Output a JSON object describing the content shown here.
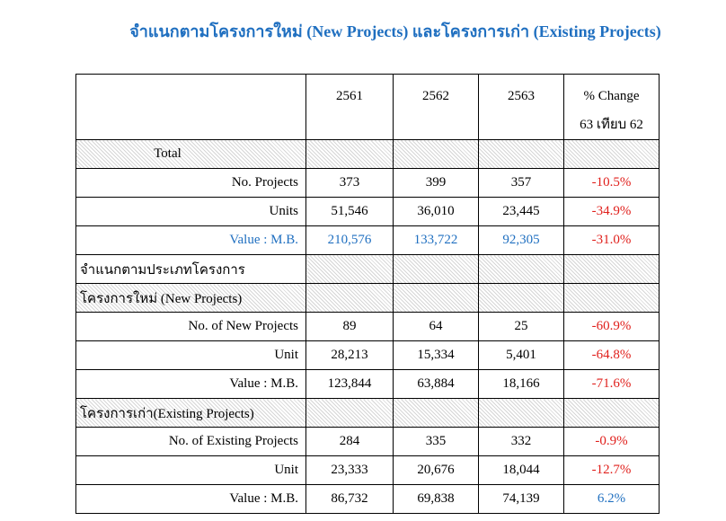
{
  "title": "จำแนกตามโครงการใหม่  (New Projects) และโครงการเก่า  (Existing Projects)",
  "table": {
    "header": [
      "2561",
      "2562",
      "2563",
      "% Change",
      "63 เทียบ 62"
    ],
    "rows": [
      [
        "Total"
      ],
      [
        "No. Projects",
        "373",
        "399",
        "357",
        "-10.5%"
      ],
      [
        "Units",
        "51,546",
        "36,010",
        "23,445",
        "-34.9%"
      ],
      [
        "Value : M.B.",
        "210,576",
        "133,722",
        "92,305",
        "-31.0%"
      ],
      [
        "จำแนกตามประเภทโครงการ"
      ],
      [
        "โครงการใหม่ (New Projects)"
      ],
      [
        "No. of New Projects",
        "89",
        "64",
        "25",
        "-60.9%"
      ],
      [
        "Unit",
        "28,213",
        "15,334",
        "5,401",
        "-64.8%"
      ],
      [
        "Value : M.B.",
        "123,844",
        "63,884",
        "18,166",
        "-71.6%"
      ],
      [
        "โครงการเก่า(Existing Projects)"
      ],
      [
        "No. of Existing Projects",
        "284",
        "335",
        "332",
        "-0.9%"
      ],
      [
        "Unit",
        "23,333",
        "20,676",
        "18,044",
        "-12.7%"
      ],
      [
        "Value : M.B.",
        "86,732",
        "69,838",
        "74,139",
        "6.2%"
      ]
    ]
  }
}
